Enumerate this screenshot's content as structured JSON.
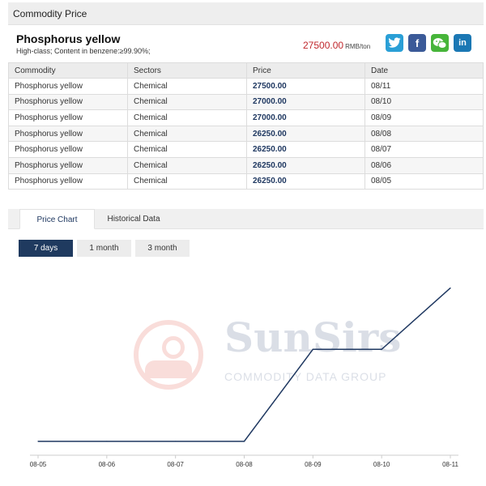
{
  "header": {
    "title": "Commodity Price"
  },
  "product": {
    "name": "Phosphorus yellow",
    "spec": "High-class; Content in benzene:≥99.90%;",
    "price": "27500.00",
    "unit": "RMB/ton"
  },
  "share": {
    "twitter": "t",
    "facebook": "f",
    "wechat": "w",
    "linkedin": "in"
  },
  "colors": {
    "price_red": "#c0282d",
    "navy": "#1f3a5f",
    "line": "#1f3861"
  },
  "table": {
    "headers": [
      "Commodity",
      "Sectors",
      "Price",
      "Date"
    ],
    "rows": [
      [
        "Phosphorus yellow",
        "Chemical",
        "27500.00",
        "08/11"
      ],
      [
        "Phosphorus yellow",
        "Chemical",
        "27000.00",
        "08/10"
      ],
      [
        "Phosphorus yellow",
        "Chemical",
        "27000.00",
        "08/09"
      ],
      [
        "Phosphorus yellow",
        "Chemical",
        "26250.00",
        "08/08"
      ],
      [
        "Phosphorus yellow",
        "Chemical",
        "26250.00",
        "08/07"
      ],
      [
        "Phosphorus yellow",
        "Chemical",
        "26250.00",
        "08/06"
      ],
      [
        "Phosphorus yellow",
        "Chemical",
        "26250.00",
        "08/05"
      ]
    ]
  },
  "tabs": [
    "Price Chart",
    "Historical Data"
  ],
  "ranges": [
    "7 days",
    "1 month",
    "3 month"
  ],
  "watermark": {
    "name": "SunSirs",
    "sub": "COMMODITY DATA GROUP"
  },
  "chart_data": {
    "type": "line",
    "title": "",
    "xlabel": "",
    "ylabel": "",
    "x": [
      "08-05",
      "08-06",
      "08-07",
      "08-08",
      "08-09",
      "08-10",
      "08-11"
    ],
    "series": [
      {
        "values": [
          26250,
          26250,
          26250,
          26250,
          27000,
          27000,
          27500
        ]
      }
    ],
    "ylim": [
      26150,
      27550
    ],
    "grid": false,
    "legend": "none"
  }
}
